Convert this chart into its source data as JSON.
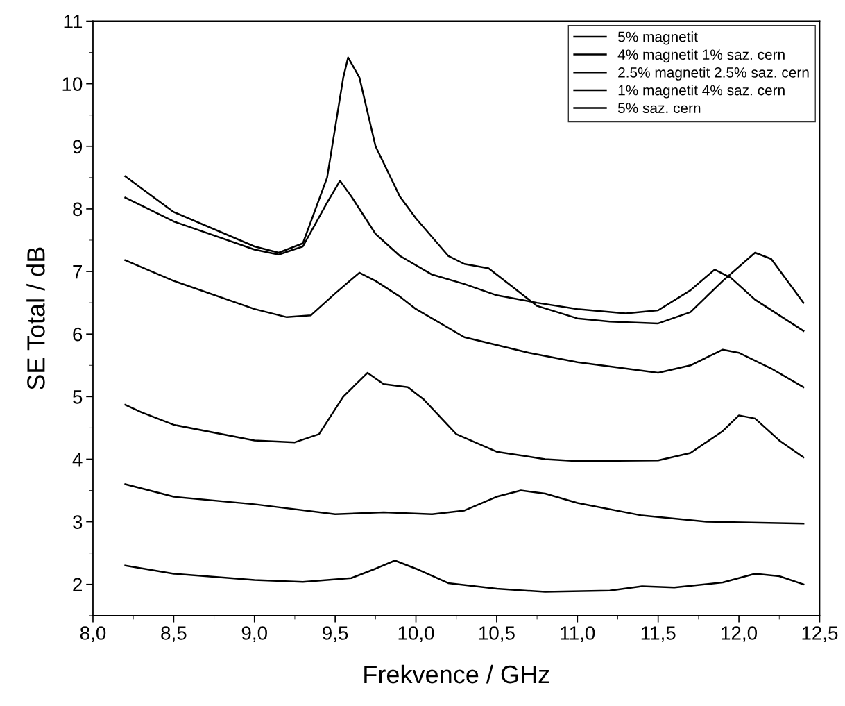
{
  "chart_data": {
    "type": "line",
    "xlabel": "Frekvence / GHz",
    "ylabel": "SE Total / dB",
    "xlim": [
      8.0,
      12.5
    ],
    "xticks": [
      {
        "value": 8.0,
        "label": "8,0"
      },
      {
        "value": 8.5,
        "label": "8,5"
      },
      {
        "value": 9.0,
        "label": "9,0"
      },
      {
        "value": 9.5,
        "label": "9,5"
      },
      {
        "value": 10.0,
        "label": "10,0"
      },
      {
        "value": 10.5,
        "label": "10,5"
      },
      {
        "value": 11.0,
        "label": "11,0"
      },
      {
        "value": 11.5,
        "label": "11,5"
      },
      {
        "value": 12.0,
        "label": "12,0"
      },
      {
        "value": 12.5,
        "label": "12,5"
      }
    ],
    "ylim": [
      1.5,
      11
    ],
    "yticks": [
      2,
      3,
      4,
      5,
      6,
      7,
      8,
      9,
      10,
      11
    ],
    "grid": false,
    "legend": "top right",
    "marker": "none",
    "line_style": "solid",
    "series": [
      {
        "color": "#000000",
        "x": [
          8.2,
          8.5,
          9.0,
          9.3,
          9.6,
          9.75,
          9.87,
          10.0,
          10.2,
          10.5,
          10.8,
          11.2,
          11.4,
          11.6,
          11.9,
          12.1,
          12.25,
          12.4
        ],
        "values": [
          2.3,
          2.17,
          2.07,
          2.04,
          2.1,
          2.25,
          2.38,
          2.25,
          2.02,
          1.93,
          1.88,
          1.9,
          1.97,
          1.95,
          2.03,
          2.17,
          2.13,
          2.0
        ]
      },
      {
        "name": "5% magnetit",
        "color": "#000000",
        "x": [
          8.2,
          8.5,
          9.0,
          9.5,
          9.8,
          10.1,
          10.3,
          10.5,
          10.65,
          10.8,
          11.0,
          11.4,
          11.8,
          12.4
        ],
        "values": [
          3.6,
          3.4,
          3.28,
          3.12,
          3.15,
          3.12,
          3.18,
          3.4,
          3.5,
          3.45,
          3.3,
          3.1,
          3.0,
          2.97
        ]
      },
      {
        "name": "4% magnetit 1% saz. cern",
        "color": "#000000",
        "x": [
          8.2,
          8.3,
          8.5,
          9.0,
          9.25,
          9.4,
          9.55,
          9.7,
          9.8,
          9.95,
          10.05,
          10.25,
          10.5,
          10.8,
          11.0,
          11.5,
          11.7,
          11.9,
          12.0,
          12.1,
          12.25,
          12.4
        ],
        "values": [
          4.87,
          4.75,
          4.55,
          4.3,
          4.27,
          4.4,
          5.0,
          5.38,
          5.2,
          5.15,
          4.95,
          4.4,
          4.12,
          4.0,
          3.97,
          3.98,
          4.1,
          4.45,
          4.7,
          4.65,
          4.3,
          4.03
        ]
      },
      {
        "name": "2.5% magnetit 2.5% saz. cern",
        "color": "#000000",
        "x": [
          8.2,
          8.5,
          9.0,
          9.2,
          9.35,
          9.5,
          9.65,
          9.75,
          9.9,
          10.0,
          10.3,
          10.7,
          11.0,
          11.5,
          11.7,
          11.9,
          12.0,
          12.2,
          12.4
        ],
        "values": [
          7.18,
          6.85,
          6.4,
          6.27,
          6.3,
          6.65,
          6.98,
          6.85,
          6.6,
          6.4,
          5.95,
          5.7,
          5.55,
          5.38,
          5.5,
          5.75,
          5.7,
          5.45,
          5.15
        ]
      },
      {
        "name": "1% magnetit 4% saz. cern",
        "color": "#000000",
        "x": [
          8.2,
          8.5,
          9.0,
          9.15,
          9.3,
          9.45,
          9.55,
          9.58,
          9.65,
          9.75,
          9.9,
          10.0,
          10.2,
          10.3,
          10.45,
          10.6,
          10.75,
          11.0,
          11.2,
          11.5,
          11.7,
          11.9,
          12.1,
          12.2,
          12.4
        ],
        "values": [
          8.52,
          7.95,
          7.4,
          7.3,
          7.45,
          8.5,
          10.1,
          10.42,
          10.1,
          9.0,
          8.2,
          7.85,
          7.25,
          7.12,
          7.05,
          6.75,
          6.45,
          6.25,
          6.2,
          6.17,
          6.35,
          6.85,
          7.3,
          7.2,
          6.5
        ]
      },
      {
        "name": "5% saz. cern",
        "color": "#000000",
        "x": [
          8.2,
          8.5,
          9.0,
          9.15,
          9.3,
          9.45,
          9.53,
          9.6,
          9.75,
          9.9,
          10.1,
          10.3,
          10.5,
          10.75,
          11.0,
          11.3,
          11.5,
          11.7,
          11.85,
          11.95,
          12.1,
          12.4
        ],
        "values": [
          8.18,
          7.8,
          7.35,
          7.27,
          7.4,
          8.1,
          8.45,
          8.2,
          7.6,
          7.25,
          6.95,
          6.8,
          6.62,
          6.5,
          6.4,
          6.33,
          6.38,
          6.7,
          7.03,
          6.9,
          6.55,
          6.05
        ]
      }
    ]
  }
}
